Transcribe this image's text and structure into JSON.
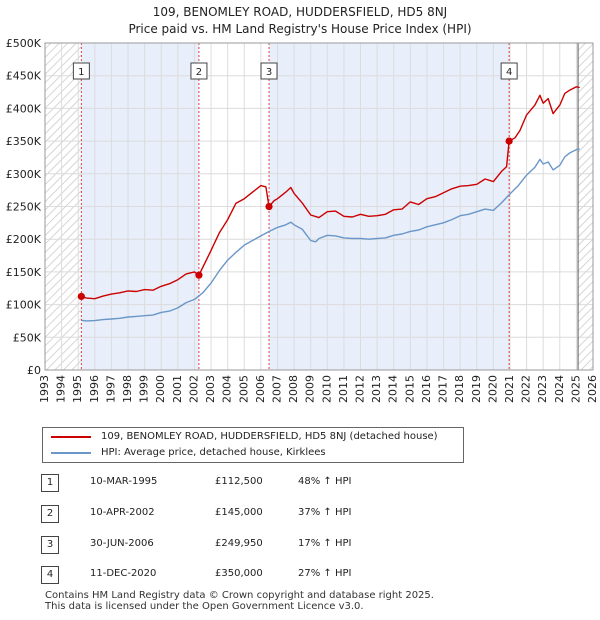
{
  "title_line1": "109, BENOMLEY ROAD, HUDDERSFIELD, HD5 8NJ",
  "title_line2": "Price paid vs. HM Land Registry's House Price Index (HPI)",
  "colors": {
    "property": "#cc0000",
    "hpi": "#6a97c8",
    "shade": "#e8eefa",
    "grid": "#dcdcdc",
    "vline": "#dd4444"
  },
  "legend": {
    "property_label": "109, BENOMLEY ROAD, HUDDERSFIELD, HD5 8NJ (detached house)",
    "hpi_label": "HPI: Average price, detached house, Kirklees"
  },
  "transactions": [
    {
      "num": "1",
      "date": "10-MAR-1995",
      "price": "£112,500",
      "hpi": "48% ↑ HPI"
    },
    {
      "num": "2",
      "date": "10-APR-2002",
      "price": "£145,000",
      "hpi": "37% ↑ HPI"
    },
    {
      "num": "3",
      "date": "30-JUN-2006",
      "price": "£249,950",
      "hpi": "17% ↑ HPI"
    },
    {
      "num": "4",
      "date": "11-DEC-2020",
      "price": "£350,000",
      "hpi": "27% ↑ HPI"
    }
  ],
  "footer_line1": "Contains HM Land Registry data © Crown copyright and database right 2025.",
  "footer_line2": "This data is licensed under the Open Government Licence v3.0.",
  "chart_data": {
    "type": "line",
    "title": "109, BENOMLEY ROAD, HUDDERSFIELD, HD5 8NJ — Price paid vs. HM Land Registry's House Price Index (HPI)",
    "xlim": [
      1993,
      2026
    ],
    "ylim": [
      0,
      500000
    ],
    "x_ticks": [
      1993,
      1994,
      1995,
      1996,
      1997,
      1998,
      1999,
      2000,
      2001,
      2002,
      2003,
      2004,
      2005,
      2006,
      2007,
      2008,
      2009,
      2010,
      2011,
      2012,
      2013,
      2014,
      2015,
      2016,
      2017,
      2018,
      2019,
      2020,
      2021,
      2022,
      2023,
      2024,
      2025,
      2026
    ],
    "y_ticks": [
      0,
      50000,
      100000,
      150000,
      200000,
      250000,
      300000,
      350000,
      400000,
      450000,
      500000
    ],
    "y_tick_labels": [
      "£0",
      "£50K",
      "£100K",
      "£150K",
      "£200K",
      "£250K",
      "£300K",
      "£350K",
      "£400K",
      "£450K",
      "£500K"
    ],
    "shaded_periods": [
      [
        1995.19,
        2002.27
      ],
      [
        2006.49,
        2020.95
      ]
    ],
    "hatched_regions": [
      [
        1993,
        1995.19
      ],
      [
        2025.1,
        2026
      ]
    ],
    "sale_markers": [
      {
        "label": "1",
        "x": 1995.19,
        "y": 112500
      },
      {
        "label": "2",
        "x": 2002.27,
        "y": 145000
      },
      {
        "label": "3",
        "x": 2006.49,
        "y": 249950
      },
      {
        "label": "4",
        "x": 2020.95,
        "y": 350000
      }
    ],
    "series": [
      {
        "name": "109, BENOMLEY ROAD, HUDDERSFIELD, HD5 8NJ (detached house)",
        "x": [
          1995.19,
          1995.5,
          1996,
          1996.5,
          1997,
          1997.5,
          1998,
          1998.5,
          1999,
          1999.5,
          2000,
          2000.5,
          2001,
          2001.5,
          2002,
          2002.27,
          2002.6,
          2003,
          2003.5,
          2004,
          2004.5,
          2005,
          2005.5,
          2006,
          2006.3,
          2006.49,
          2006.8,
          2007,
          2007.5,
          2007.8,
          2008,
          2008.5,
          2009,
          2009.5,
          2010,
          2010.5,
          2011,
          2011.5,
          2012,
          2012.5,
          2013,
          2013.5,
          2014,
          2014.5,
          2015,
          2015.5,
          2016,
          2016.5,
          2017,
          2017.5,
          2018,
          2018.5,
          2019,
          2019.5,
          2020,
          2020.5,
          2020.8,
          2020.95,
          2021.3,
          2021.6,
          2022,
          2022.5,
          2022.8,
          2023,
          2023.3,
          2023.6,
          2024,
          2024.3,
          2024.6,
          2025,
          2025.2
        ],
        "y": [
          112500,
          110000,
          109000,
          113000,
          116000,
          118000,
          121000,
          120000,
          123000,
          122000,
          128000,
          132000,
          138000,
          147000,
          150000,
          145000,
          162000,
          183000,
          210000,
          230000,
          255000,
          262000,
          272000,
          282000,
          280000,
          249950,
          259000,
          262000,
          272000,
          279000,
          270000,
          255000,
          237000,
          233000,
          242000,
          243000,
          235000,
          234000,
          238000,
          235000,
          236000,
          238000,
          245000,
          246000,
          257000,
          253000,
          262000,
          265000,
          271000,
          277000,
          281000,
          282000,
          284000,
          292000,
          288000,
          304000,
          311000,
          350000,
          355000,
          366000,
          390000,
          405000,
          420000,
          408000,
          415000,
          392000,
          405000,
          423000,
          428000,
          433000,
          432000
        ]
      },
      {
        "name": "HPI: Average price, detached house, Kirklees",
        "x": [
          1995.19,
          1995.5,
          1996,
          1996.5,
          1997,
          1997.5,
          1998,
          1998.5,
          1999,
          1999.5,
          2000,
          2000.5,
          2001,
          2001.5,
          2002,
          2002.5,
          2003,
          2003.5,
          2004,
          2004.5,
          2005,
          2005.5,
          2006,
          2006.5,
          2007,
          2007.5,
          2007.8,
          2008,
          2008.5,
          2009,
          2009.3,
          2009.5,
          2010,
          2010.5,
          2011,
          2011.5,
          2012,
          2012.5,
          2013,
          2013.5,
          2014,
          2014.5,
          2015,
          2015.5,
          2016,
          2016.5,
          2017,
          2017.5,
          2018,
          2018.5,
          2019,
          2019.5,
          2020,
          2020.5,
          2020.95,
          2021.5,
          2022,
          2022.5,
          2022.8,
          2023,
          2023.3,
          2023.6,
          2024,
          2024.3,
          2024.6,
          2025,
          2025.2
        ],
        "y": [
          76000,
          75000,
          75500,
          77000,
          78000,
          79000,
          81000,
          82000,
          83000,
          84000,
          88000,
          90000,
          95000,
          103000,
          108000,
          118000,
          133000,
          152000,
          168000,
          180000,
          191000,
          198000,
          205000,
          212000,
          218000,
          222000,
          226000,
          222000,
          215000,
          198000,
          196000,
          201000,
          206000,
          205000,
          202000,
          201000,
          201000,
          200000,
          201000,
          202000,
          206000,
          208000,
          212000,
          214000,
          219000,
          222000,
          225000,
          230000,
          236000,
          238000,
          242000,
          246000,
          244000,
          256000,
          268000,
          282000,
          298000,
          310000,
          322000,
          315000,
          318000,
          306000,
          313000,
          326000,
          332000,
          337000,
          338000
        ]
      }
    ]
  }
}
